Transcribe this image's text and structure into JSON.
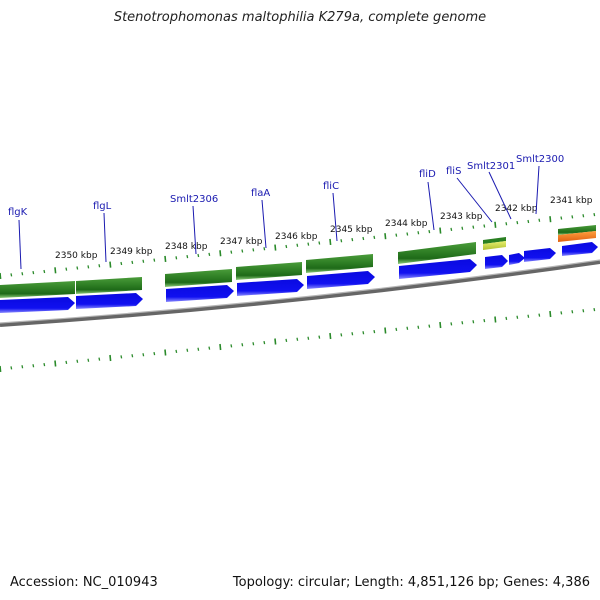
{
  "title": "Stenotrophomonas maltophilia K279a, complete genome",
  "accession": "Accession: NC_010943",
  "stats": "Topology: circular; Length: 4,851,126 bp; Genes: 4,386",
  "colors": {
    "cds_green": "#2e8b2e",
    "cds_blue": "#1010e8",
    "backbone": "#808080",
    "tick": "#2a8a2a",
    "label": "#1a1ab0",
    "flis_yellow": "#c8d84a",
    "smlt2300_orange": "#ee7a1a"
  },
  "scale_labels": [
    "2350 kbp",
    "2349 kbp",
    "2348 kbp",
    "2347 kbp",
    "2346 kbp",
    "2345 kbp",
    "2344 kbp",
    "2343 kbp",
    "2342 kbp",
    "2341 kbp"
  ],
  "gene_labels": [
    "flgK",
    "flgL",
    "Smlt2306",
    "flaA",
    "fliC",
    "fliD",
    "fliS",
    "Smlt2301",
    "Smlt2300"
  ]
}
